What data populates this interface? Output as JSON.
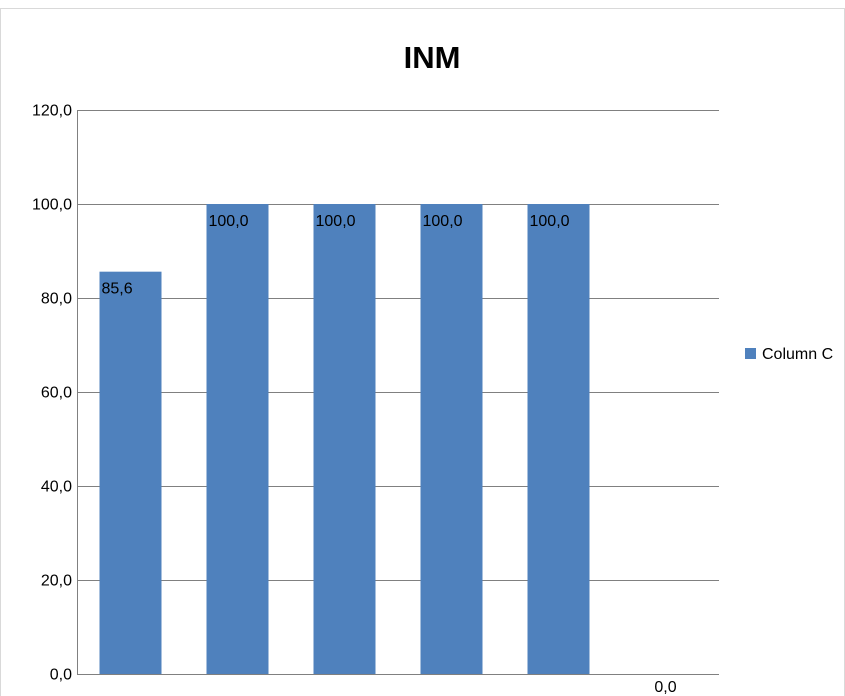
{
  "chart_data": {
    "type": "bar",
    "title": "INM",
    "xlabel": "",
    "ylabel": "",
    "ylim": [
      0,
      120
    ],
    "yticks": [
      0,
      20,
      40,
      60,
      80,
      100,
      120
    ],
    "ytick_labels": [
      "0,0",
      "20,0",
      "40,0",
      "60,0",
      "80,0",
      "100,0",
      "120,0"
    ],
    "categories": [
      "",
      "",
      "",
      "",
      "",
      ""
    ],
    "series": [
      {
        "name": "Column C",
        "values": [
          85.6,
          100.0,
          100.0,
          100.0,
          100.0,
          0.0
        ],
        "labels": [
          "85,6",
          "100,0",
          "100,0",
          "100,0",
          "100,0",
          "0,0"
        ],
        "color": "#4f81bd"
      }
    ],
    "grid": true,
    "legend": "right"
  }
}
